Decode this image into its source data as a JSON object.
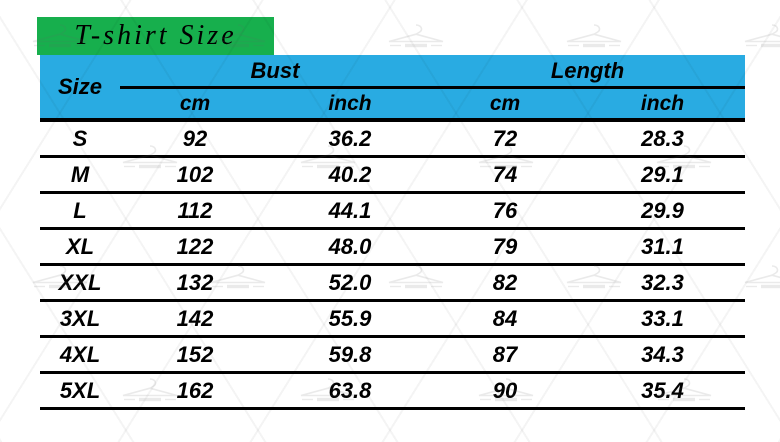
{
  "title": "T-shirt Size",
  "header": {
    "size": "Size",
    "groups": [
      {
        "label": "Bust",
        "sub": [
          "cm",
          "inch"
        ]
      },
      {
        "label": "Length",
        "sub": [
          "cm",
          "inch"
        ]
      }
    ]
  },
  "chart_data": {
    "type": "table",
    "title": "T-shirt Size",
    "columns": [
      "Size",
      "Bust cm",
      "Bust inch",
      "Length cm",
      "Length inch"
    ],
    "rows": [
      {
        "size": "S",
        "bust_cm": "92",
        "bust_inch": "36.2",
        "length_cm": "72",
        "length_inch": "28.3"
      },
      {
        "size": "M",
        "bust_cm": "102",
        "bust_inch": "40.2",
        "length_cm": "74",
        "length_inch": "29.1"
      },
      {
        "size": "L",
        "bust_cm": "112",
        "bust_inch": "44.1",
        "length_cm": "76",
        "length_inch": "29.9"
      },
      {
        "size": "XL",
        "bust_cm": "122",
        "bust_inch": "48.0",
        "length_cm": "79",
        "length_inch": "31.1"
      },
      {
        "size": "XXL",
        "bust_cm": "132",
        "bust_inch": "52.0",
        "length_cm": "82",
        "length_inch": "32.3"
      },
      {
        "size": "3XL",
        "bust_cm": "142",
        "bust_inch": "55.9",
        "length_cm": "84",
        "length_inch": "33.1"
      },
      {
        "size": "4XL",
        "bust_cm": "152",
        "bust_inch": "59.8",
        "length_cm": "87",
        "length_inch": "34.3"
      },
      {
        "size": "5XL",
        "bust_cm": "162",
        "bust_inch": "63.8",
        "length_cm": "90",
        "length_inch": "35.4"
      }
    ]
  },
  "colors": {
    "title_bg": "#17af4d",
    "header_bg": "#29abe2",
    "text": "#000000",
    "line": "#000000"
  },
  "watermark": {
    "icon": "clothes-hanger-icon"
  }
}
